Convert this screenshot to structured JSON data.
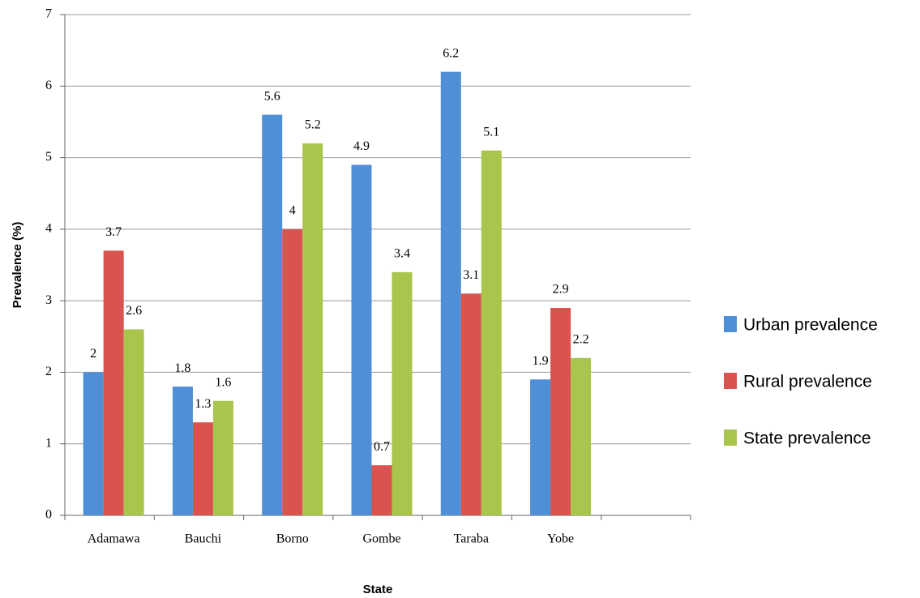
{
  "chart_data": {
    "type": "bar",
    "x_label": "State",
    "y_label": "Prevalence (%)",
    "categories": [
      "Adamawa",
      "Bauchi",
      "Borno",
      "Gombe",
      "Taraba",
      "Yobe",
      null
    ],
    "series": [
      {
        "name": "Urban prevalence",
        "color": "#4f8fd6",
        "values": [
          2,
          1.8,
          5.6,
          4.9,
          6.2,
          1.9,
          null
        ]
      },
      {
        "name": "Rural prevalence",
        "color": "#d9534f",
        "values": [
          3.7,
          1.3,
          4,
          0.7,
          3.1,
          2.9,
          null
        ]
      },
      {
        "name": "State prevalence",
        "color": "#a9c54b",
        "values": [
          2.6,
          1.6,
          5.2,
          3.4,
          5.1,
          2.2,
          null
        ]
      }
    ],
    "ylim": [
      0,
      7
    ],
    "yticks": [
      0,
      1,
      2,
      3,
      4,
      5,
      6,
      7
    ],
    "grid": true,
    "legend": "right"
  }
}
